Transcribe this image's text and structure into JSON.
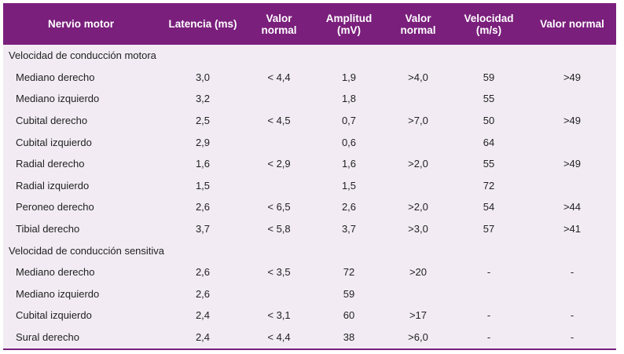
{
  "headers": [
    "Nervio motor",
    "Latencia (ms)",
    "Valor normal",
    "Amplitud (mV)",
    "Valor normal",
    "Velocidad (m/s)",
    "Valor normal"
  ],
  "sections": [
    {
      "title": "Velocidad de conducción motora",
      "rows": [
        [
          "Mediano derecho",
          "3,0",
          "< 4,4",
          "1,9",
          ">4,0",
          "59",
          ">49"
        ],
        [
          "Mediano izquierdo",
          "3,2",
          "",
          "1,8",
          "",
          "55",
          ""
        ],
        [
          "Cubital derecho",
          "2,5",
          "< 4,5",
          "0,7",
          ">7,0",
          "50",
          ">49"
        ],
        [
          "Cubital izquierdo",
          "2,9",
          "",
          "0,6",
          "",
          "64",
          ""
        ],
        [
          "Radial derecho",
          "1,6",
          "< 2,9",
          "1,6",
          ">2,0",
          "55",
          ">49"
        ],
        [
          "Radial izquierdo",
          "1,5",
          "",
          "1,5",
          "",
          "72",
          ""
        ],
        [
          "Peroneo derecho",
          "2,6",
          "< 6,5",
          "2,6",
          ">2,0",
          "54",
          ">44"
        ],
        [
          "Tibial derecho",
          "3,7",
          "< 5,8",
          "3,7",
          ">3,0",
          "57",
          ">41"
        ]
      ]
    },
    {
      "title": "Velocidad de conducción sensitiva",
      "rows": [
        [
          "Mediano derecho",
          "2,6",
          "< 3,5",
          "72",
          ">20",
          "-",
          "-"
        ],
        [
          "Mediano izquierdo",
          "2,6",
          "",
          "59",
          "",
          "",
          ""
        ],
        [
          "Cubital izquierdo",
          "2,4",
          "< 3,1",
          "60",
          ">17",
          "-",
          "-"
        ],
        [
          "Sural derecho",
          "2,4",
          "< 4,4",
          "38",
          ">6,0",
          "-",
          "-"
        ]
      ]
    }
  ],
  "colors": {
    "header_bg": "#7a1f7c",
    "body_bg": "#f2ebf4",
    "header_text": "#ffffff"
  }
}
